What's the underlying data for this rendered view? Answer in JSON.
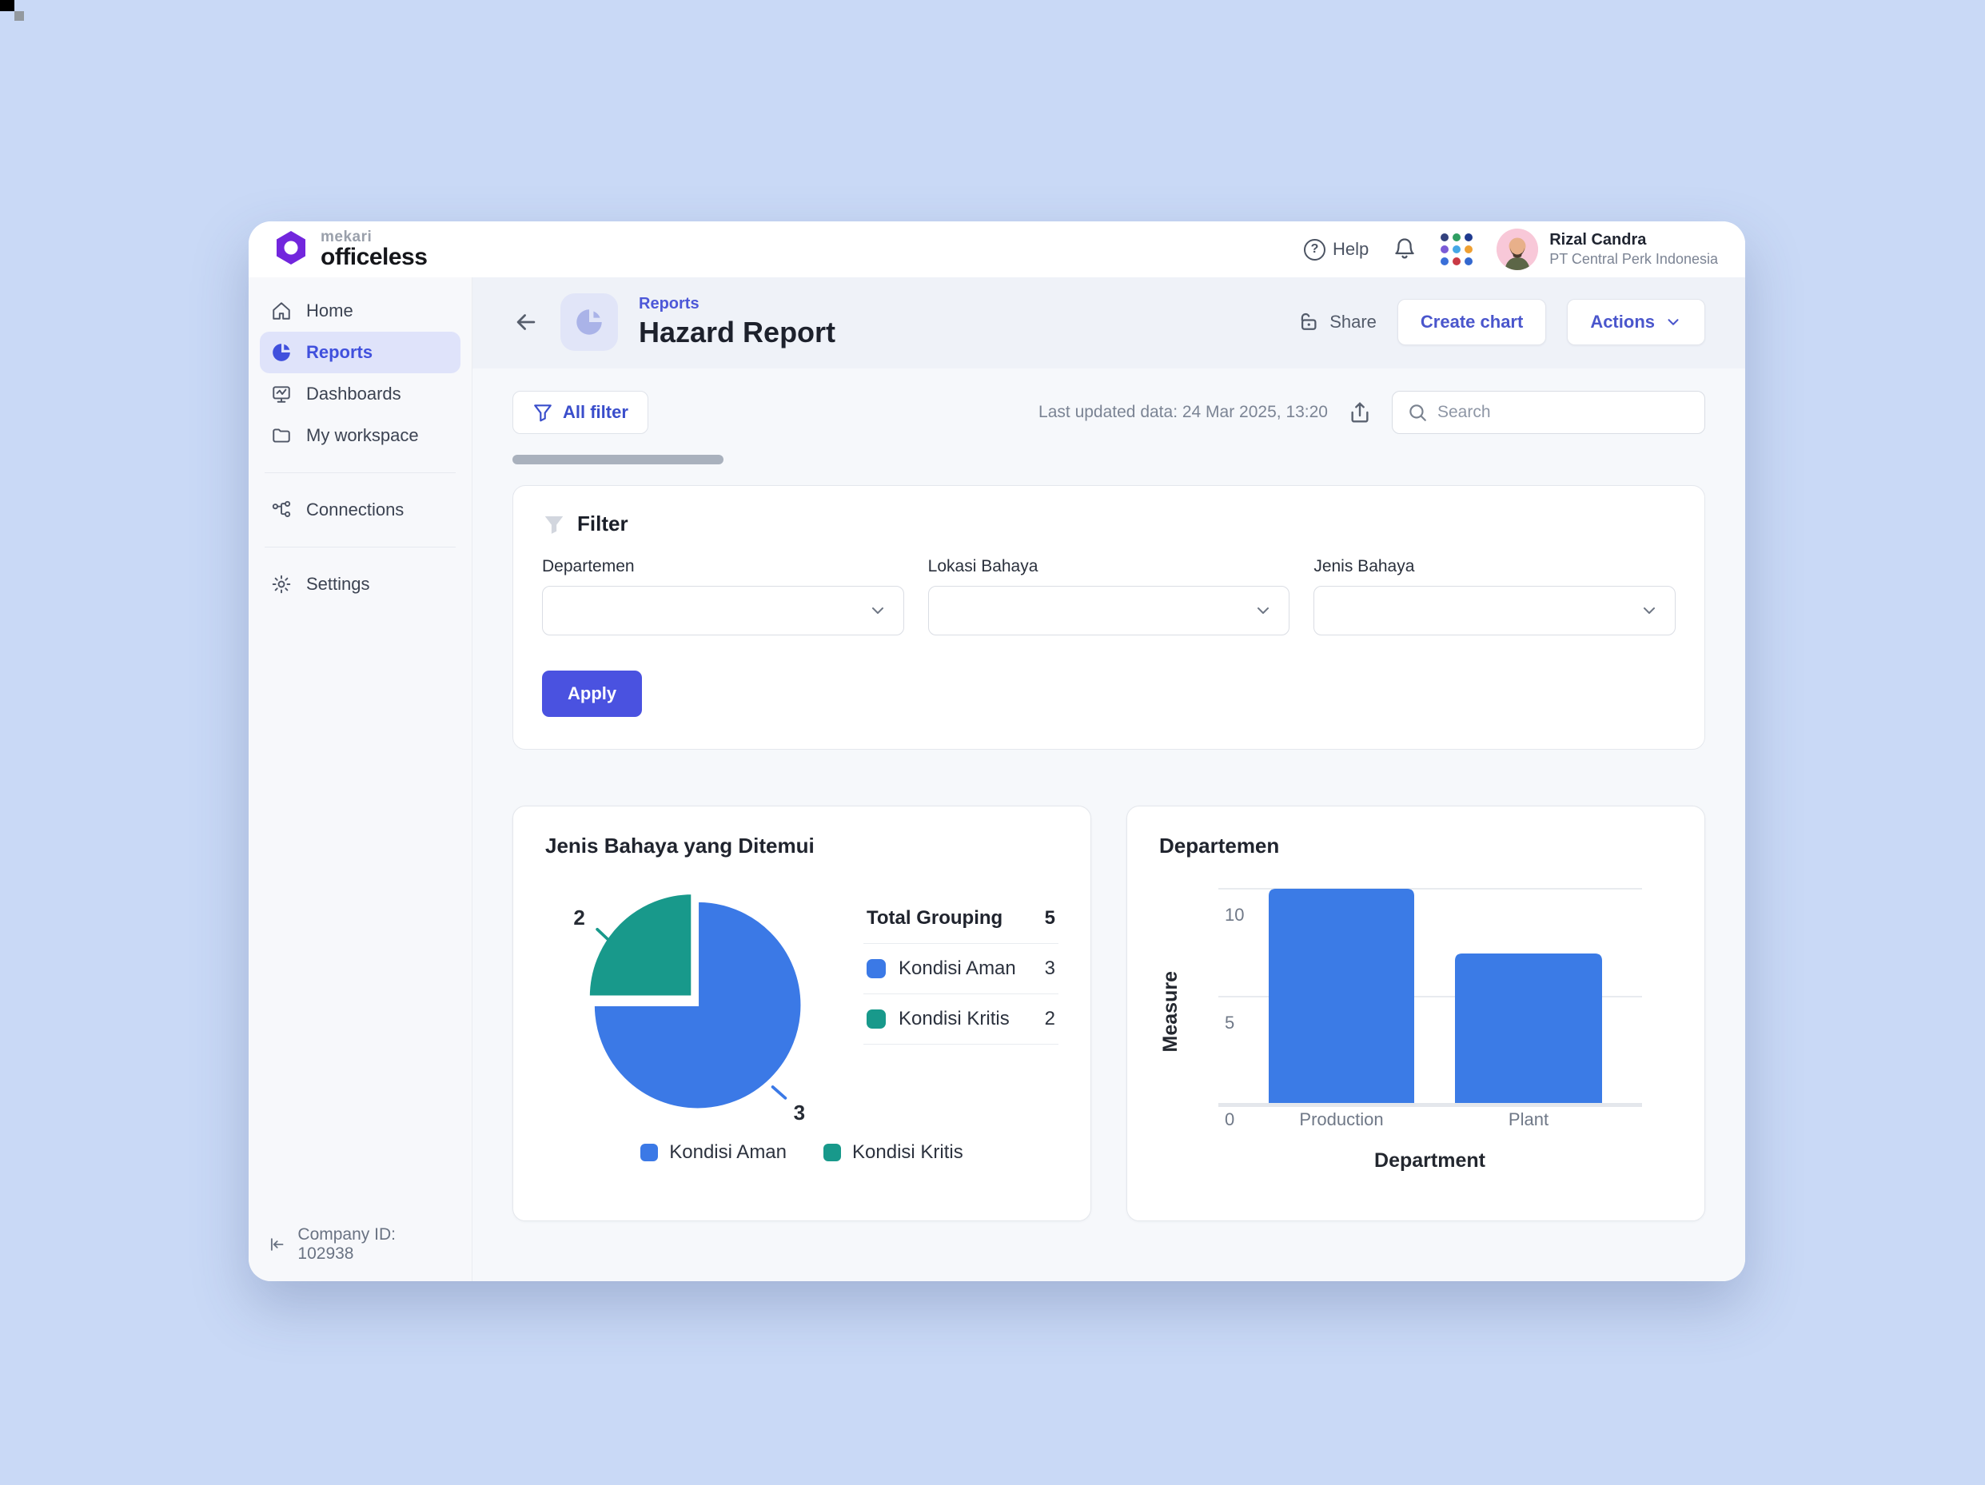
{
  "topbar": {
    "brand": {
      "name_top": "mekari",
      "name_bottom": "officeless"
    },
    "help_label": "Help",
    "help_glyph": "?",
    "user": {
      "name": "Rizal Candra",
      "company": "PT Central Perk Indonesia"
    }
  },
  "sidebar": {
    "items": [
      {
        "label": "Home"
      },
      {
        "label": "Reports",
        "active": true
      },
      {
        "label": "Dashboards"
      },
      {
        "label": "My workspace"
      },
      {
        "label": "Connections"
      },
      {
        "label": "Settings"
      }
    ],
    "company_id_label": "Company ID: 102938"
  },
  "page_header": {
    "breadcrumb": "Reports",
    "title": "Hazard Report",
    "share_label": "Share",
    "create_chart_label": "Create chart",
    "actions_label": "Actions"
  },
  "toolbar": {
    "all_filter_label": "All filter",
    "last_updated": "Last updated data: 24 Mar 2025, 13:20",
    "search_placeholder": "Search"
  },
  "filter_panel": {
    "title": "Filter",
    "fields": [
      {
        "label": "Departemen",
        "value": ""
      },
      {
        "label": "Lokasi Bahaya",
        "value": ""
      },
      {
        "label": "Jenis Bahaya",
        "value": ""
      }
    ],
    "apply_label": "Apply"
  },
  "pie_card": {
    "title": "Jenis Bahaya yang Ditemui",
    "total_label": "Total Grouping",
    "total_value": "5",
    "rows": [
      {
        "label": "Kondisi Aman",
        "value": "3"
      },
      {
        "label": "Kondisi Kritis",
        "value": "2"
      }
    ],
    "callout_kritis": "2",
    "callout_aman": "3",
    "legend": [
      {
        "label": "Kondisi Aman"
      },
      {
        "label": "Kondisi Kritis"
      }
    ]
  },
  "bar_card": {
    "title": "Departemen",
    "y_axis_label": "Measure",
    "x_axis_label": "Department",
    "tick_10": "10",
    "tick_5": "5",
    "tick_0": "0"
  },
  "chart_data": [
    {
      "type": "pie",
      "title": "Jenis Bahaya yang Ditemui",
      "labels": [
        "Kondisi Aman",
        "Kondisi Kritis"
      ],
      "values": [
        3,
        2
      ],
      "total": 5,
      "colors": [
        "#3b79e6",
        "#18998b"
      ],
      "legend_position": "bottom",
      "note": "Kondisi Kritis slice rendered as exploded top-left quadrant"
    },
    {
      "type": "bar",
      "title": "Departemen",
      "categories": [
        "Production",
        "Plant"
      ],
      "values": [
        10,
        7
      ],
      "xlabel": "Department",
      "ylabel": "Measure",
      "ylim": [
        0,
        10
      ],
      "yticks": [
        0,
        5,
        10
      ],
      "grid": true,
      "bar_color": "#3b7be6"
    }
  ],
  "colors": {
    "accent_indigo": "#4a52e0",
    "active_nav_bg": "#dfe3fa",
    "active_nav_text": "#4050dd",
    "pie_blue": "#3b79e6",
    "pie_teal": "#18998b",
    "bar_blue": "#3b7be6",
    "page_bg": "#c9d9f6",
    "logo_purple": "#7226dd"
  }
}
